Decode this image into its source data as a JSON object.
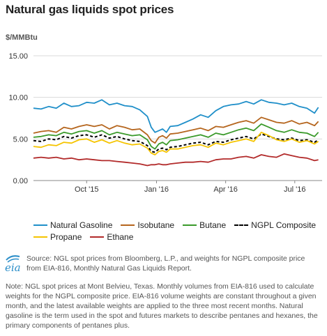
{
  "title": "Natural gas liquids spot prices",
  "unit_label": "$/MMBtu",
  "chart_data": {
    "type": "line",
    "ylim": [
      0,
      15
    ],
    "yticks": [
      "0.00",
      "5.00",
      "10.00",
      "15.00"
    ],
    "xlim": [
      0,
      380
    ],
    "xticks": [
      {
        "label": "Oct '15",
        "x": 70
      },
      {
        "label": "Jan '16",
        "x": 162
      },
      {
        "label": "Apr '16",
        "x": 253
      },
      {
        "label": "Jul '16",
        "x": 344
      }
    ],
    "grid": "horizontal",
    "legend_position": "bottom",
    "series": [
      {
        "name": "Natural Gasoline",
        "color": "#1f8fc9",
        "dash": false,
        "x": [
          0,
          10,
          20,
          30,
          40,
          50,
          60,
          70,
          80,
          90,
          100,
          110,
          120,
          130,
          140,
          150,
          155,
          160,
          165,
          170,
          175,
          180,
          190,
          200,
          210,
          220,
          230,
          240,
          250,
          260,
          270,
          280,
          290,
          300,
          310,
          320,
          330,
          340,
          350,
          360,
          370,
          375
        ],
        "values": [
          8.7,
          8.6,
          8.9,
          8.7,
          9.3,
          8.9,
          9.0,
          9.4,
          9.3,
          9.7,
          9.1,
          9.3,
          9.0,
          8.9,
          8.5,
          7.7,
          6.4,
          5.8,
          6.0,
          6.2,
          5.8,
          6.5,
          6.6,
          7.0,
          7.4,
          7.9,
          7.6,
          8.4,
          8.9,
          9.1,
          9.2,
          9.5,
          9.2,
          9.7,
          9.4,
          9.3,
          9.1,
          9.3,
          8.9,
          8.7,
          8.1,
          8.8
        ]
      },
      {
        "name": "Isobutane",
        "color": "#b5651d",
        "dash": false,
        "x": [
          0,
          10,
          20,
          30,
          40,
          50,
          60,
          70,
          80,
          90,
          100,
          110,
          120,
          130,
          140,
          150,
          155,
          160,
          165,
          170,
          175,
          180,
          190,
          200,
          210,
          220,
          230,
          240,
          250,
          260,
          270,
          280,
          290,
          300,
          310,
          320,
          330,
          340,
          350,
          360,
          370,
          375
        ],
        "values": [
          5.7,
          5.9,
          6.0,
          5.8,
          6.4,
          6.2,
          6.5,
          6.7,
          6.5,
          6.7,
          6.2,
          6.6,
          6.4,
          6.1,
          6.2,
          5.5,
          4.8,
          4.5,
          5.2,
          5.4,
          5.1,
          5.6,
          5.7,
          5.9,
          6.1,
          6.3,
          6.0,
          6.5,
          6.4,
          6.7,
          7.0,
          7.2,
          6.9,
          7.6,
          7.3,
          7.0,
          6.9,
          7.2,
          6.8,
          7.0,
          6.6,
          7.1
        ]
      },
      {
        "name": "Butane",
        "color": "#3a9a2a",
        "dash": false,
        "x": [
          0,
          10,
          20,
          30,
          40,
          50,
          60,
          70,
          80,
          90,
          100,
          110,
          120,
          130,
          140,
          150,
          155,
          160,
          165,
          170,
          175,
          180,
          190,
          200,
          210,
          220,
          230,
          240,
          250,
          260,
          270,
          280,
          290,
          300,
          310,
          320,
          330,
          340,
          350,
          360,
          370,
          375
        ],
        "values": [
          5.2,
          5.3,
          5.5,
          5.4,
          5.8,
          5.6,
          5.9,
          6.0,
          5.7,
          6.0,
          5.5,
          5.8,
          5.6,
          5.4,
          5.5,
          4.9,
          4.1,
          3.8,
          4.4,
          4.6,
          4.3,
          4.8,
          4.9,
          5.1,
          5.3,
          5.5,
          5.2,
          5.7,
          5.5,
          5.8,
          6.1,
          6.3,
          6.0,
          6.8,
          6.4,
          6.0,
          5.8,
          6.1,
          5.8,
          5.7,
          5.3,
          5.8
        ]
      },
      {
        "name": "NGPL Composite",
        "color": "#000000",
        "dash": true,
        "x": [
          0,
          10,
          20,
          30,
          40,
          50,
          60,
          70,
          80,
          90,
          100,
          110,
          120,
          130,
          140,
          150,
          155,
          160,
          165,
          170,
          175,
          180,
          190,
          200,
          210,
          220,
          230,
          240,
          250,
          260,
          270,
          280,
          290,
          300,
          310,
          320,
          330,
          340,
          350,
          360,
          370,
          375
        ],
        "values": [
          4.8,
          4.7,
          5.0,
          4.9,
          5.3,
          5.1,
          5.4,
          5.5,
          5.2,
          5.5,
          5.1,
          5.3,
          5.0,
          4.8,
          4.7,
          4.2,
          3.5,
          3.4,
          3.8,
          3.9,
          3.7,
          4.0,
          4.1,
          4.3,
          4.5,
          4.6,
          4.3,
          4.7,
          4.6,
          4.9,
          5.1,
          5.3,
          5.0,
          5.6,
          5.3,
          5.0,
          4.9,
          5.1,
          4.8,
          4.9,
          4.6,
          4.9
        ]
      },
      {
        "name": "Propane",
        "color": "#f5c400",
        "dash": false,
        "x": [
          0,
          10,
          20,
          30,
          40,
          50,
          60,
          70,
          80,
          90,
          100,
          110,
          120,
          130,
          140,
          150,
          155,
          160,
          165,
          170,
          175,
          180,
          190,
          200,
          210,
          220,
          230,
          240,
          250,
          260,
          270,
          280,
          290,
          300,
          310,
          320,
          330,
          340,
          350,
          360,
          370,
          375
        ],
        "values": [
          4.1,
          4.0,
          4.3,
          4.2,
          4.6,
          4.5,
          4.9,
          5.0,
          4.6,
          4.9,
          4.5,
          4.8,
          4.5,
          4.3,
          4.4,
          3.9,
          3.3,
          3.1,
          3.5,
          3.6,
          3.4,
          3.8,
          3.8,
          4.0,
          4.2,
          4.3,
          4.0,
          4.5,
          4.3,
          4.6,
          4.8,
          5.0,
          4.7,
          5.8,
          5.4,
          4.9,
          4.7,
          5.0,
          4.6,
          4.8,
          4.4,
          4.7
        ]
      },
      {
        "name": "Ethane",
        "color": "#b22a2a",
        "dash": false,
        "x": [
          0,
          10,
          20,
          30,
          40,
          50,
          60,
          70,
          80,
          90,
          100,
          110,
          120,
          130,
          140,
          150,
          155,
          160,
          165,
          170,
          175,
          180,
          190,
          200,
          210,
          220,
          230,
          240,
          250,
          260,
          270,
          280,
          290,
          300,
          310,
          320,
          330,
          340,
          350,
          360,
          370,
          375
        ],
        "values": [
          2.7,
          2.8,
          2.7,
          2.8,
          2.6,
          2.7,
          2.5,
          2.6,
          2.5,
          2.4,
          2.4,
          2.3,
          2.2,
          2.1,
          2.0,
          1.8,
          1.9,
          1.9,
          2.0,
          1.9,
          1.9,
          2.0,
          2.1,
          2.2,
          2.2,
          2.3,
          2.2,
          2.5,
          2.6,
          2.6,
          2.8,
          2.9,
          2.7,
          3.1,
          2.9,
          2.8,
          3.2,
          3.0,
          2.8,
          2.7,
          2.4,
          2.5
        ]
      }
    ]
  },
  "legend_rows": [
    [
      "Natural Gasoline",
      "Isobutane",
      "Butane",
      "NGPL Composite"
    ],
    [
      "Propane",
      "Ethane"
    ]
  ],
  "source": {
    "logo_text": "eia",
    "logo_color": "#2d8fc9",
    "text": "Source: NGL spot prices from Bloomberg, L.P., and weights for NGPL composite price from EIA-816, Monthly Natural Gas Liquids Report."
  },
  "note": "Note: NGL spot prices at Mont Belvieu, Texas. Monthly volumes from EIA-816 used to calculate weights for the NGPL composite price. EIA-816 volume weights are constant throughout a given month, and the latest available weights are applied to the three most recent months. Natural gasoline is the term used in the spot and futures markets to describe pentanes and hexanes, the primary components of pentanes plus."
}
